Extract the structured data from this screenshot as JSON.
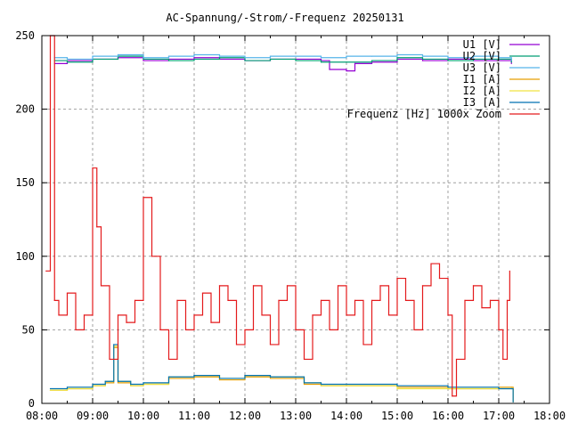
{
  "chart_data": {
    "type": "line",
    "title": "AC-Spannung/-Strom/-Frequenz 20250131",
    "xlabel": "",
    "ylabel": "",
    "xlim": [
      "08:00",
      "18:00"
    ],
    "ylim": [
      0,
      250
    ],
    "grid": true,
    "legend_position": "top-right",
    "x_ticks": [
      "08:00",
      "09:00",
      "10:00",
      "11:00",
      "12:00",
      "13:00",
      "14:00",
      "15:00",
      "16:00",
      "17:00",
      "18:00"
    ],
    "y_ticks": [
      0,
      50,
      100,
      150,
      200,
      250
    ],
    "series": [
      {
        "name": "U1 [V]",
        "color": "#9400d3",
        "x": [
          "08:15",
          "08:30",
          "09:00",
          "09:30",
          "10:00",
          "10:30",
          "11:00",
          "11:30",
          "12:00",
          "12:30",
          "13:00",
          "13:30",
          "13:40",
          "14:00",
          "14:10",
          "14:30",
          "15:00",
          "15:30",
          "16:00",
          "16:30",
          "17:00",
          "17:15"
        ],
        "y": [
          231,
          233,
          234,
          235,
          233,
          234,
          235,
          234,
          233,
          234,
          234,
          233,
          227,
          226,
          231,
          232,
          234,
          233,
          234,
          233,
          233,
          231
        ]
      },
      {
        "name": "U2 [V]",
        "color": "#009e73",
        "x": [
          "08:15",
          "08:30",
          "09:00",
          "09:30",
          "10:00",
          "10:30",
          "11:00",
          "11:30",
          "12:00",
          "12:30",
          "13:00",
          "13:30",
          "14:00",
          "14:30",
          "15:00",
          "15:30",
          "16:00",
          "16:30",
          "17:00",
          "17:15"
        ],
        "y": [
          233,
          232,
          234,
          236,
          234,
          233,
          234,
          235,
          233,
          234,
          233,
          232,
          232,
          233,
          235,
          234,
          233,
          234,
          234,
          232
        ]
      },
      {
        "name": "U3 [V]",
        "color": "#56b4e9",
        "x": [
          "08:15",
          "08:30",
          "09:00",
          "09:30",
          "10:00",
          "10:30",
          "11:00",
          "11:30",
          "12:00",
          "12:30",
          "13:00",
          "13:30",
          "14:00",
          "14:30",
          "15:00",
          "15:30",
          "16:00",
          "16:30",
          "17:00",
          "17:15"
        ],
        "y": [
          235,
          234,
          236,
          237,
          235,
          236,
          237,
          236,
          235,
          236,
          236,
          235,
          236,
          236,
          237,
          236,
          235,
          236,
          235,
          233
        ]
      },
      {
        "name": "I1 [A]",
        "color": "#e69f00",
        "x": [
          "08:10",
          "08:30",
          "09:00",
          "09:15",
          "09:25",
          "09:30",
          "09:45",
          "10:00",
          "10:30",
          "11:00",
          "11:30",
          "12:00",
          "12:30",
          "13:00",
          "13:10",
          "13:30",
          "14:00",
          "15:00",
          "16:00",
          "17:00",
          "17:15",
          "17:17"
        ],
        "y": [
          9,
          10,
          12,
          14,
          38,
          14,
          12,
          13,
          17,
          18,
          16,
          18,
          17,
          17,
          13,
          12,
          12,
          11,
          10,
          11,
          11,
          1
        ]
      },
      {
        "name": "I2 [A]",
        "color": "#f0e442",
        "x": [
          "08:10",
          "08:30",
          "09:00",
          "09:15",
          "09:25",
          "09:30",
          "09:45",
          "10:00",
          "10:30",
          "11:00",
          "11:30",
          "12:00",
          "12:30",
          "13:00",
          "13:10",
          "13:30",
          "14:00",
          "15:00",
          "16:00",
          "17:00",
          "17:15",
          "17:17"
        ],
        "y": [
          9,
          10,
          12,
          15,
          39,
          15,
          12,
          13,
          18,
          19,
          17,
          19,
          18,
          18,
          14,
          12,
          12,
          10,
          10,
          10,
          10,
          1
        ]
      },
      {
        "name": "I3 [A]",
        "color": "#0072b2",
        "x": [
          "08:10",
          "08:30",
          "09:00",
          "09:15",
          "09:25",
          "09:30",
          "09:45",
          "10:00",
          "10:30",
          "11:00",
          "11:30",
          "12:00",
          "12:30",
          "13:00",
          "13:10",
          "13:30",
          "14:00",
          "15:00",
          "16:00",
          "17:00",
          "17:15",
          "17:17"
        ],
        "y": [
          10,
          11,
          13,
          15,
          40,
          15,
          13,
          14,
          18,
          19,
          17,
          19,
          18,
          18,
          14,
          13,
          13,
          12,
          11,
          10,
          10,
          1
        ]
      },
      {
        "name": "Frequenz [Hz] 1000x Zoom",
        "color": "#e41a1c",
        "x": [
          "08:05",
          "08:10",
          "08:15",
          "08:20",
          "08:30",
          "08:40",
          "08:50",
          "09:00",
          "09:05",
          "09:10",
          "09:20",
          "09:30",
          "09:40",
          "09:50",
          "10:00",
          "10:10",
          "10:20",
          "10:30",
          "10:40",
          "10:50",
          "11:00",
          "11:10",
          "11:20",
          "11:30",
          "11:40",
          "11:50",
          "12:00",
          "12:10",
          "12:20",
          "12:30",
          "12:40",
          "12:50",
          "13:00",
          "13:10",
          "13:20",
          "13:30",
          "13:40",
          "13:50",
          "14:00",
          "14:10",
          "14:20",
          "14:30",
          "14:40",
          "14:50",
          "15:00",
          "15:10",
          "15:20",
          "15:30",
          "15:40",
          "15:50",
          "16:00",
          "16:05",
          "16:10",
          "16:20",
          "16:30",
          "16:40",
          "16:50",
          "17:00",
          "17:05",
          "17:10",
          "17:13"
        ],
        "y": [
          90,
          250,
          70,
          60,
          75,
          50,
          60,
          160,
          120,
          80,
          30,
          60,
          55,
          70,
          140,
          100,
          50,
          30,
          70,
          50,
          60,
          75,
          55,
          80,
          70,
          40,
          50,
          80,
          60,
          40,
          70,
          80,
          50,
          30,
          60,
          70,
          50,
          80,
          60,
          70,
          40,
          70,
          80,
          60,
          85,
          70,
          50,
          80,
          95,
          85,
          60,
          5,
          30,
          70,
          80,
          65,
          70,
          50,
          30,
          70,
          90
        ]
      }
    ]
  }
}
